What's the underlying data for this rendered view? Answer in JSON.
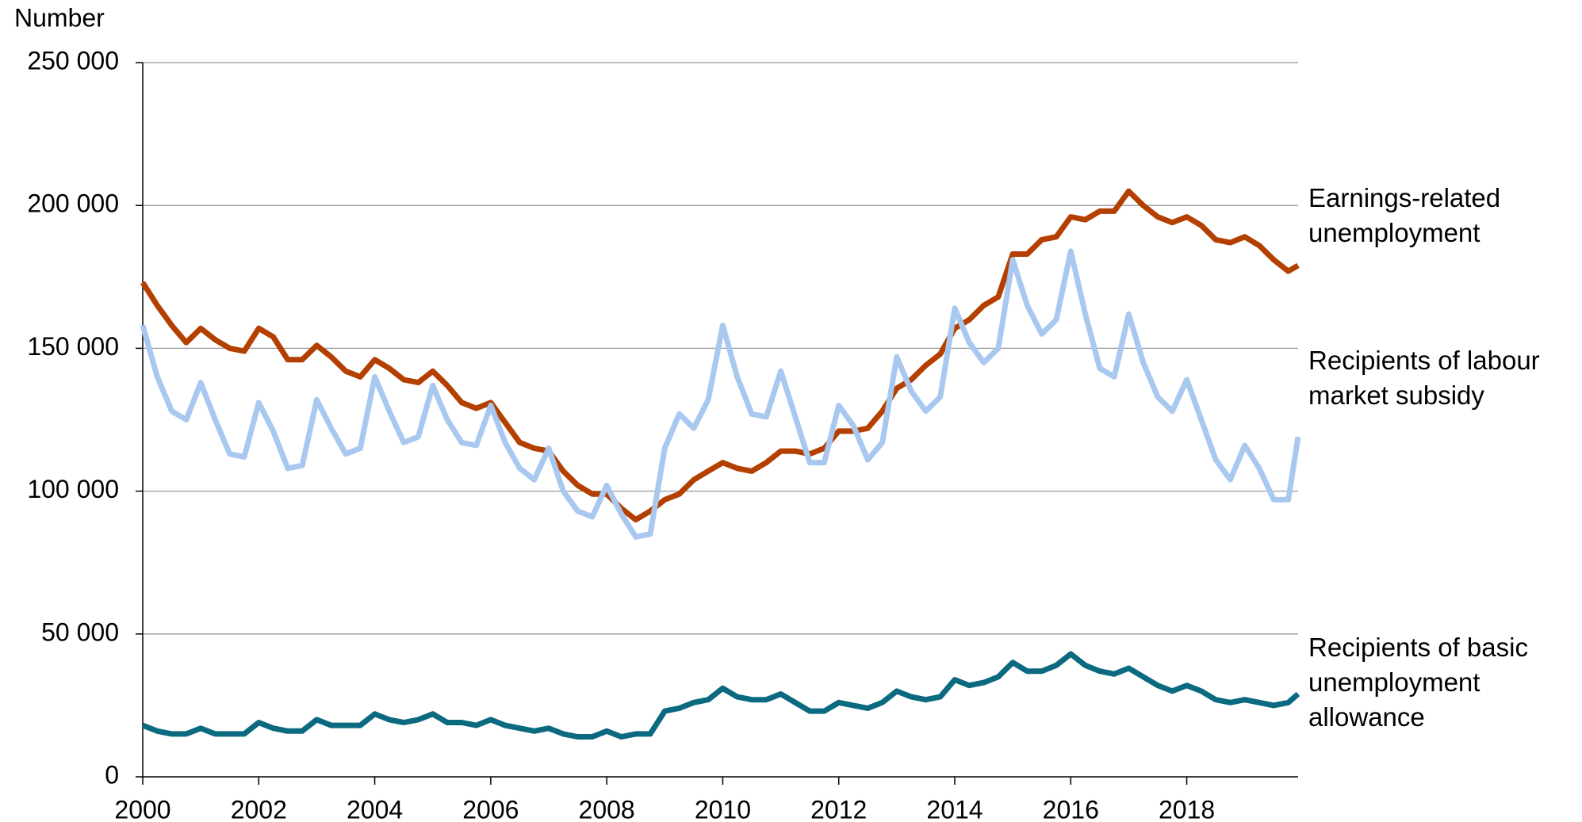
{
  "chart_data": {
    "type": "line",
    "y_label": "Number",
    "x": [
      2000,
      2000.25,
      2000.5,
      2000.75,
      2001,
      2001.25,
      2001.5,
      2001.75,
      2002,
      2002.25,
      2002.5,
      2002.75,
      2003,
      2003.25,
      2003.5,
      2003.75,
      2004,
      2004.25,
      2004.5,
      2004.75,
      2005,
      2005.25,
      2005.5,
      2005.75,
      2006,
      2006.25,
      2006.5,
      2006.75,
      2007,
      2007.25,
      2007.5,
      2007.75,
      2008,
      2008.25,
      2008.5,
      2008.75,
      2009,
      2009.25,
      2009.5,
      2009.75,
      2010,
      2010.25,
      2010.5,
      2010.75,
      2011,
      2011.25,
      2011.5,
      2011.75,
      2012,
      2012.25,
      2012.5,
      2012.75,
      2013,
      2013.25,
      2013.5,
      2013.75,
      2014,
      2014.25,
      2014.5,
      2014.75,
      2015,
      2015.25,
      2015.5,
      2015.75,
      2016,
      2016.25,
      2016.5,
      2016.75,
      2017,
      2017.25,
      2017.5,
      2017.75,
      2018,
      2018.25,
      2018.5,
      2018.75,
      2019,
      2019.25,
      2019.5,
      2019.75,
      2019.92
    ],
    "series": [
      {
        "name": "Earnings-related unemployment",
        "color": "#b33f00",
        "values": [
          173000,
          165000,
          158000,
          152000,
          157000,
          153000,
          150000,
          149000,
          157000,
          154000,
          146000,
          146000,
          151000,
          147000,
          142000,
          140000,
          146000,
          143000,
          139000,
          138000,
          142000,
          137000,
          131000,
          129000,
          131000,
          124000,
          117000,
          115000,
          114000,
          107000,
          102000,
          99000,
          99000,
          94000,
          90000,
          93000,
          97000,
          99000,
          104000,
          107000,
          110000,
          108000,
          107000,
          110000,
          114000,
          114000,
          113000,
          115000,
          121000,
          121000,
          122000,
          128000,
          136000,
          139000,
          144000,
          148000,
          157000,
          160000,
          165000,
          168000,
          183000,
          183000,
          188000,
          189000,
          196000,
          195000,
          198000,
          198000,
          205000,
          200000,
          196000,
          194000,
          196000,
          193000,
          188000,
          187000,
          189000,
          186000,
          181000,
          177000,
          179000
        ]
      },
      {
        "name": "Recipients of labour market subsidy",
        "color": "#a9c8f0",
        "values": [
          158000,
          140000,
          128000,
          125000,
          138000,
          125000,
          113000,
          112000,
          131000,
          121000,
          108000,
          109000,
          132000,
          122000,
          113000,
          115000,
          140000,
          128000,
          117000,
          119000,
          137000,
          125000,
          117000,
          116000,
          130000,
          117000,
          108000,
          104000,
          115000,
          100000,
          93000,
          91000,
          102000,
          92000,
          84000,
          85000,
          115000,
          127000,
          122000,
          132000,
          158000,
          140000,
          127000,
          126000,
          142000,
          126000,
          110000,
          110000,
          130000,
          123000,
          111000,
          117000,
          147000,
          135000,
          128000,
          133000,
          164000,
          152000,
          145000,
          150000,
          181000,
          165000,
          155000,
          160000,
          184000,
          162000,
          143000,
          140000,
          162000,
          145000,
          133000,
          128000,
          139000,
          125000,
          111000,
          104000,
          116000,
          108000,
          97000,
          97000,
          119000
        ]
      },
      {
        "name": "Recipients of basic unemployment allowance",
        "color": "#0b6a80",
        "values": [
          18000,
          16000,
          15000,
          15000,
          17000,
          15000,
          15000,
          15000,
          19000,
          17000,
          16000,
          16000,
          20000,
          18000,
          18000,
          18000,
          22000,
          20000,
          19000,
          20000,
          22000,
          19000,
          19000,
          18000,
          20000,
          18000,
          17000,
          16000,
          17000,
          15000,
          14000,
          14000,
          16000,
          14000,
          15000,
          15000,
          23000,
          24000,
          26000,
          27000,
          31000,
          28000,
          27000,
          27000,
          29000,
          26000,
          23000,
          23000,
          26000,
          25000,
          24000,
          26000,
          30000,
          28000,
          27000,
          28000,
          34000,
          32000,
          33000,
          35000,
          40000,
          37000,
          37000,
          39000,
          43000,
          39000,
          37000,
          36000,
          38000,
          35000,
          32000,
          30000,
          32000,
          30000,
          27000,
          26000,
          27000,
          26000,
          25000,
          26000,
          29000
        ]
      }
    ],
    "xlim": [
      2000,
      2019.92
    ],
    "xticks": [
      2000,
      2002,
      2004,
      2006,
      2008,
      2010,
      2012,
      2014,
      2016,
      2018
    ],
    "ylim": [
      0,
      250000
    ],
    "yticks": [
      0,
      {
        "value": 50000,
        "label": "50 000"
      },
      {
        "value": 100000,
        "label": "100 000"
      },
      {
        "value": 150000,
        "label": "150 000"
      },
      {
        "value": 200000,
        "label": "200 000"
      },
      {
        "value": 250000,
        "label": "250 000"
      }
    ],
    "grid": true
  }
}
